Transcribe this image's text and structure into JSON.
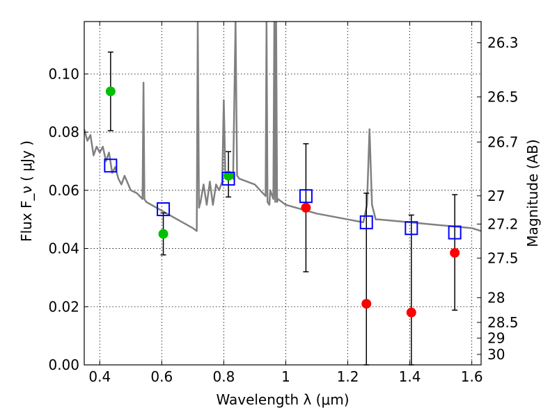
{
  "chart_data": {
    "type": "scatter",
    "title": "",
    "xlabel": "Wavelength  λ (μm)",
    "ylabel": "Flux  F_ν  ( μJy )",
    "ylabel_right": "Magnitude (AB)",
    "xlim": [
      0.35,
      1.63
    ],
    "ylim": [
      0.0,
      0.118
    ],
    "grid": true,
    "x_ticks": [
      0.4,
      0.6,
      0.8,
      1.0,
      1.2,
      1.4,
      1.6
    ],
    "x_tick_labels": [
      "0.4",
      "0.6",
      "0.8",
      "1",
      "1.2",
      "1.4",
      "1.6"
    ],
    "y_ticks": [
      0.0,
      0.02,
      0.04,
      0.06,
      0.08,
      0.1
    ],
    "y_tick_labels": [
      "0.00",
      "0.02",
      "0.04",
      "0.06",
      "0.08",
      "0.10"
    ],
    "right_ticks": [
      {
        "label": "26.3",
        "flux": 0.1107
      },
      {
        "label": "26.5",
        "flux": 0.0921
      },
      {
        "label": "26.7",
        "flux": 0.0766
      },
      {
        "label": "27",
        "flux": 0.0581
      },
      {
        "label": "27.2",
        "flux": 0.0484
      },
      {
        "label": "27.5",
        "flux": 0.0367
      },
      {
        "label": "28",
        "flux": 0.0231
      },
      {
        "label": "28.5",
        "flux": 0.0146
      },
      {
        "label": "29",
        "flux": 0.0092
      },
      {
        "label": "30",
        "flux": 0.0036
      }
    ],
    "series": [
      {
        "name": "green detections",
        "color": "#00c000",
        "marker": "circle",
        "x": [
          0.435,
          0.605,
          0.815
        ],
        "y": [
          0.094,
          0.045,
          0.065
        ],
        "yerr_low": [
          0.0805,
          0.0378,
          0.0577
        ],
        "yerr_high": [
          0.1075,
          0.0522,
          0.0733
        ]
      },
      {
        "name": "red detections",
        "color": "#ff0000",
        "marker": "circle",
        "x": [
          1.065,
          1.26,
          1.405,
          1.545
        ],
        "y": [
          0.054,
          0.021,
          0.018,
          0.0385
        ],
        "yerr_low": [
          0.032,
          0.0,
          0.0,
          0.0188
        ],
        "yerr_high": [
          0.076,
          0.059,
          0.0515,
          0.0585
        ]
      },
      {
        "name": "model photometry",
        "color": "#0000ff",
        "marker": "open-square",
        "x": [
          0.435,
          0.605,
          0.815,
          1.065,
          1.26,
          1.405,
          1.545
        ],
        "y": [
          0.0685,
          0.0535,
          0.064,
          0.058,
          0.049,
          0.047,
          0.0455
        ]
      }
    ],
    "model_spectrum": {
      "name": "SED model",
      "color": "#808080",
      "x": [
        0.35,
        0.36,
        0.37,
        0.38,
        0.39,
        0.4,
        0.41,
        0.42,
        0.43,
        0.44,
        0.45,
        0.46,
        0.47,
        0.48,
        0.5,
        0.52,
        0.538,
        0.541,
        0.544,
        0.55,
        0.6,
        0.65,
        0.7,
        0.713,
        0.716,
        0.72,
        0.725,
        0.735,
        0.745,
        0.755,
        0.765,
        0.775,
        0.785,
        0.795,
        0.8,
        0.805,
        0.815,
        0.83,
        0.838,
        0.843,
        0.85,
        0.9,
        0.935,
        0.938,
        0.941,
        0.947,
        0.95,
        0.96,
        0.963,
        0.966,
        0.969,
        0.972,
        0.975,
        1.0,
        1.1,
        1.2,
        1.25,
        1.262,
        1.27,
        1.278,
        1.29,
        1.3,
        1.4,
        1.5,
        1.6,
        1.63
      ],
      "y": [
        0.081,
        0.077,
        0.079,
        0.072,
        0.075,
        0.073,
        0.075,
        0.07,
        0.073,
        0.066,
        0.068,
        0.064,
        0.062,
        0.065,
        0.06,
        0.059,
        0.057,
        0.097,
        0.057,
        0.056,
        0.053,
        0.05,
        0.047,
        0.046,
        0.118,
        0.054,
        0.056,
        0.062,
        0.055,
        0.063,
        0.055,
        0.062,
        0.06,
        0.063,
        0.091,
        0.066,
        0.065,
        0.064,
        0.118,
        0.065,
        0.064,
        0.062,
        0.058,
        0.118,
        0.056,
        0.055,
        0.06,
        0.057,
        0.118,
        0.056,
        0.118,
        0.056,
        0.057,
        0.055,
        0.052,
        0.05,
        0.049,
        0.055,
        0.081,
        0.055,
        0.05,
        0.05,
        0.049,
        0.048,
        0.047,
        0.046
      ]
    }
  }
}
